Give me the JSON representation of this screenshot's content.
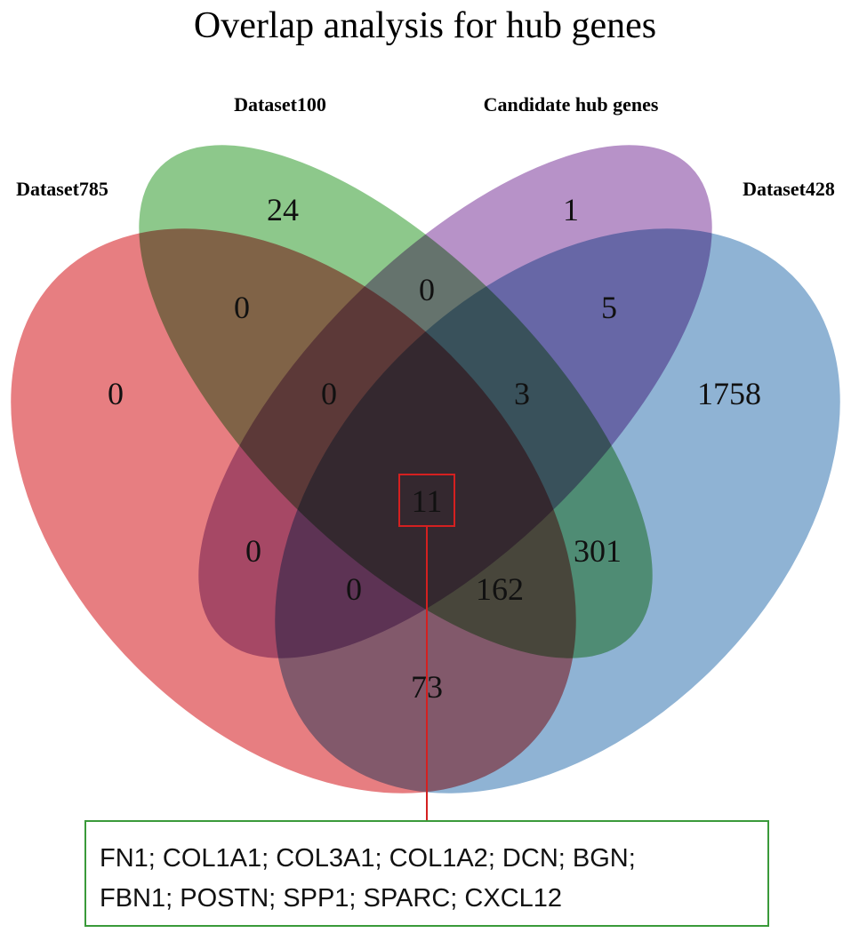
{
  "title": "Overlap analysis for hub genes",
  "sets": [
    {
      "name": "Dataset785",
      "color": "#e05a5e"
    },
    {
      "name": "Dataset100",
      "color": "#6db86a"
    },
    {
      "name": "Candidate hub genes",
      "color": "#a373b8"
    },
    {
      "name": "Dataset428",
      "color": "#6f9dc8"
    }
  ],
  "regions": {
    "only_785": "0",
    "only_100": "24",
    "only_candidate": "1",
    "only_428": "1758",
    "d785_d100": "0",
    "d100_candidate": "0",
    "candidate_d428": "5",
    "d785_d100_candidate": "0",
    "d100_candidate_d428": "3",
    "d785_candidate": "0",
    "d100_d428": "301",
    "all_four": "11",
    "d785_candidate_d428": "0",
    "d785_d100_d428": "162",
    "d785_d428": "73"
  },
  "callout": {
    "line1": "FN1; COL1A1; COL3A1; COL1A2; DCN; BGN;",
    "line2": "FBN1; POSTN; SPP1; SPARC; CXCL12",
    "box_color": "#3a9a3a",
    "connector_color": "#d42020"
  }
}
